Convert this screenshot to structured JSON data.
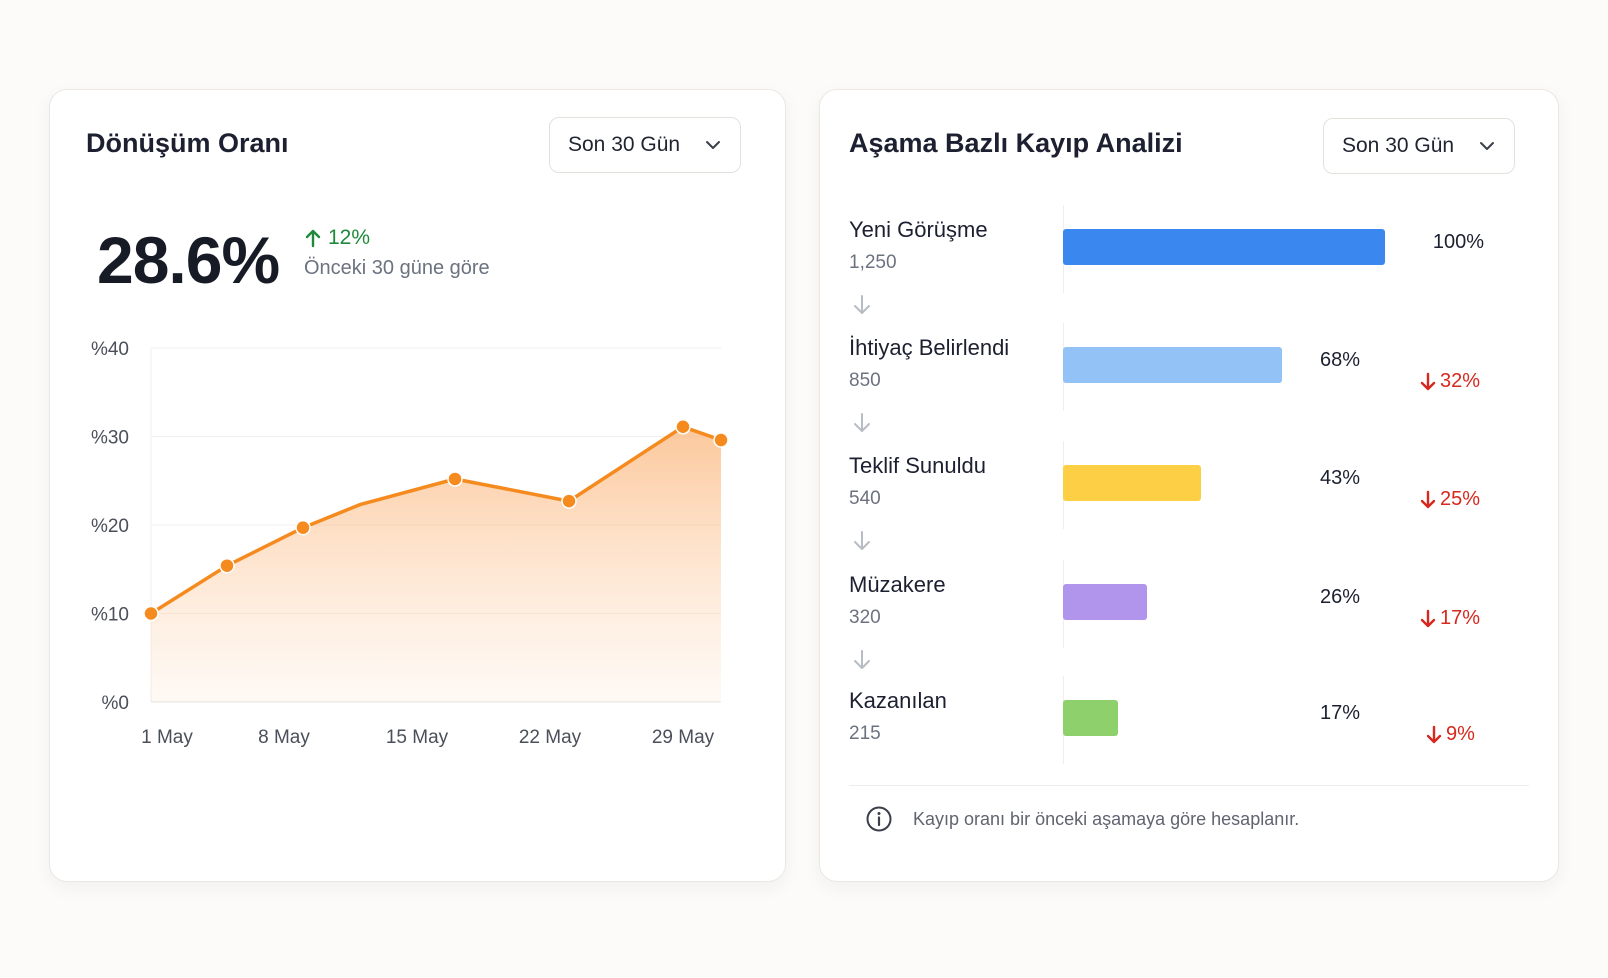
{
  "conversion": {
    "title": "Dönüşüm Oranı",
    "period": "Son 30 Gün",
    "kpi_value": "28.6%",
    "kpi_change": "12%",
    "kpi_note": "Önceki 30 güne göre",
    "accent_color": "#f58a1f",
    "change_color": "#1f8a3b"
  },
  "chart_data": {
    "type": "area",
    "y_ticks": [
      "%40",
      "%30",
      "%20",
      "%10",
      "%0"
    ],
    "ylim": [
      0,
      40
    ],
    "x_ticks": [
      "1 May",
      "8 May",
      "15 May",
      "22 May",
      "29 May"
    ],
    "x": [
      1,
      5,
      9,
      12,
      17,
      23,
      29,
      31
    ],
    "y": [
      10,
      15.4,
      19.7,
      22.3,
      25.2,
      22.7,
      31.1,
      29.6
    ],
    "markers": [
      true,
      true,
      true,
      false,
      true,
      true,
      true,
      true
    ],
    "grid": true
  },
  "funnel": {
    "title": "Aşama Bazlı Kayıp Analizi",
    "period": "Son 30 Gün",
    "stages": [
      {
        "name": "Yeni Görüşme",
        "count": "1,250",
        "pct": "100%",
        "ratio": 1.0,
        "loss": "",
        "color": "#3b87f0"
      },
      {
        "name": "İhtiyaç Belirlendi",
        "count": "850",
        "pct": "68%",
        "ratio": 0.68,
        "loss": "32%",
        "color": "#93c2f6"
      },
      {
        "name": "Teklif Sunuldu",
        "count": "540",
        "pct": "43%",
        "ratio": 0.43,
        "loss": "25%",
        "color": "#fdcf45"
      },
      {
        "name": "Müzakere",
        "count": "320",
        "pct": "26%",
        "ratio": 0.26,
        "loss": "17%",
        "color": "#b195ec"
      },
      {
        "name": "Kazanılan",
        "count": "215",
        "pct": "17%",
        "ratio": 0.17,
        "loss": "9%",
        "color": "#8ed06b"
      }
    ],
    "footer_note": "Kayıp oranı bir önceki aşamaya göre hesaplanır.",
    "loss_color": "#d6281e"
  }
}
